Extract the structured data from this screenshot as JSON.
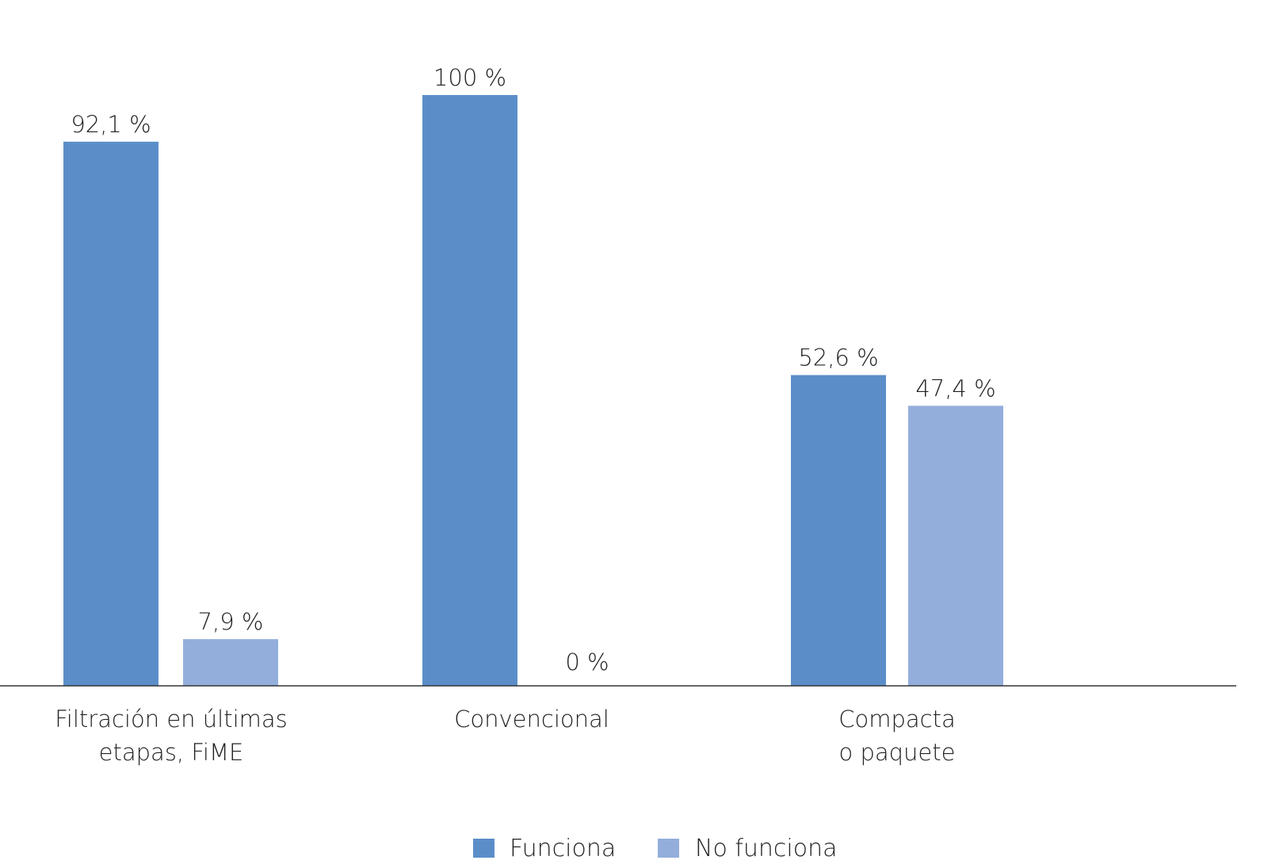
{
  "chart_data": {
    "type": "bar",
    "categories": [
      [
        "Filtración en últimas",
        "etapas, FiME"
      ],
      [
        "Convencional"
      ],
      [
        "Compacta",
        "o paquete"
      ]
    ],
    "series": [
      {
        "name": "Funciona",
        "color": "#5b8ec9",
        "values": [
          92.1,
          100,
          52.6
        ],
        "labels": [
          "92,1 %",
          "100 %",
          "52,6 %"
        ]
      },
      {
        "name": "No funciona",
        "color": "#94aedc",
        "values": [
          7.9,
          0,
          47.4
        ],
        "labels": [
          "7,9 %",
          "0 %",
          "47,4 %"
        ]
      }
    ],
    "ylim": [
      0,
      100
    ],
    "grid": false,
    "legend_position": "bottom-center",
    "axis_color": "#333333"
  }
}
